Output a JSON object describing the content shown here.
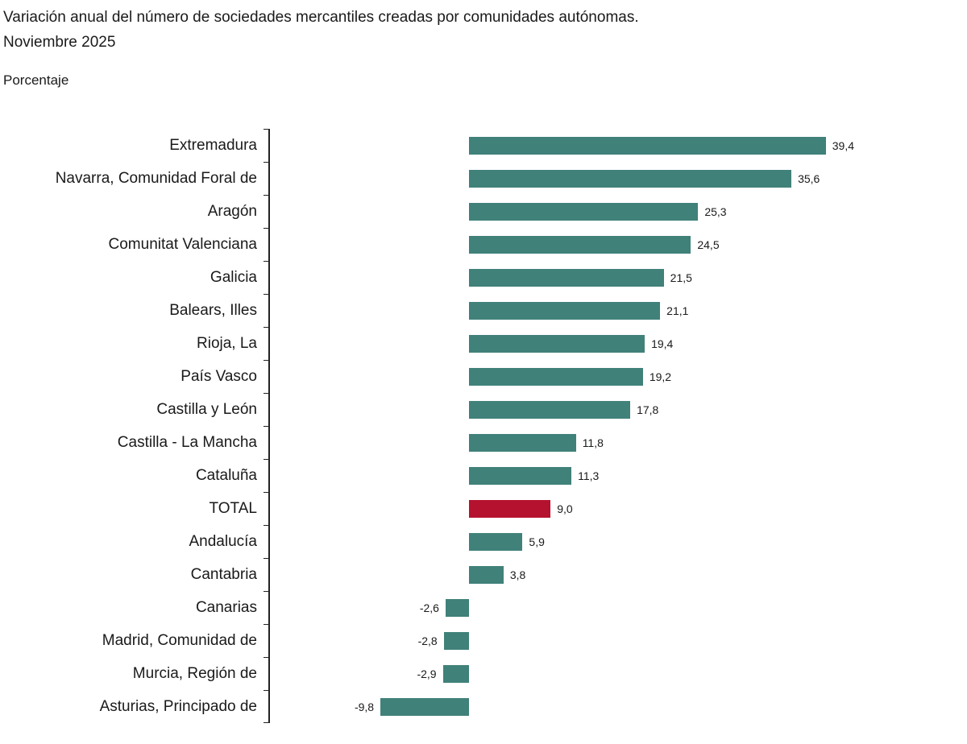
{
  "title": {
    "line1": "Variación anual del número de sociedades mercantiles creadas por comunidades autónomas.",
    "line2": "Noviembre 2025"
  },
  "subtitle": "Porcentaje",
  "colors": {
    "bar": "#40817A",
    "highlight_bar": "#B5122F",
    "axis": "#222222",
    "text": "#1A1A1A"
  },
  "chart_data": {
    "type": "bar",
    "orientation": "horizontal",
    "title": "Variación anual del número de sociedades mercantiles creadas por comunidades autónomas. Noviembre 2025",
    "xlabel": "Porcentaje",
    "ylabel": "",
    "xlim": [
      -22,
      55
    ],
    "grid": false,
    "legend": false,
    "highlight_category": "TOTAL",
    "categories": [
      "Extremadura",
      "Navarra, Comunidad Foral de",
      "Aragón",
      "Comunitat Valenciana",
      "Galicia",
      "Balears, Illes",
      "Rioja, La",
      "País Vasco",
      "Castilla y León",
      "Castilla - La Mancha",
      "Cataluña",
      "TOTAL",
      "Andalucía",
      "Cantabria",
      "Canarias",
      "Madrid, Comunidad de",
      "Murcia, Región de",
      "Asturias, Principado de"
    ],
    "values": [
      39.4,
      35.6,
      25.3,
      24.5,
      21.5,
      21.1,
      19.4,
      19.2,
      17.8,
      11.8,
      11.3,
      9.0,
      5.9,
      3.8,
      -2.6,
      -2.8,
      -2.9,
      -9.8
    ],
    "value_labels": [
      "39,4",
      "35,6",
      "25,3",
      "24,5",
      "21,5",
      "21,1",
      "19,4",
      "19,2",
      "17,8",
      "11,8",
      "11,3",
      "9,0",
      "5,9",
      "3,8",
      "-2,6",
      "-2,8",
      "-2,9",
      "-9,8"
    ]
  }
}
